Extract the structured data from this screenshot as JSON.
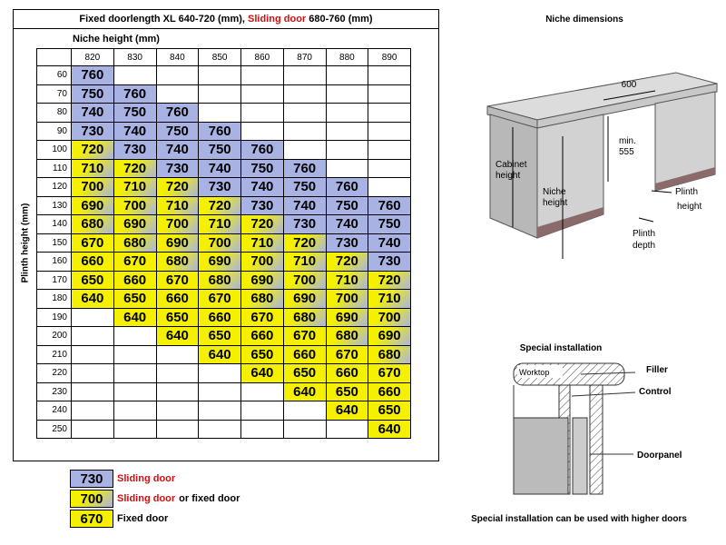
{
  "header": {
    "title_fixed": "Fixed doorlength XL 640-720 (mm),",
    "title_sliding": "Sliding door",
    "title_rest": "680-760 (mm)"
  },
  "table": {
    "x_label": "Niche height (mm)",
    "y_label": "Plinth height (mm)",
    "columns": [
      820,
      830,
      840,
      850,
      860,
      870,
      880,
      890
    ],
    "rows": [
      {
        "label": 60,
        "values": [
          760,
          null,
          null,
          null,
          null,
          null,
          null,
          null
        ],
        "colors": [
          "#a9b3e3",
          null,
          null,
          null,
          null,
          null,
          null,
          null
        ]
      },
      {
        "label": 70,
        "values": [
          750,
          760,
          null,
          null,
          null,
          null,
          null,
          null
        ],
        "colors": [
          "#a9b3e3",
          "#a9b3e3",
          null,
          null,
          null,
          null,
          null,
          null
        ]
      },
      {
        "label": 80,
        "values": [
          740,
          750,
          760,
          null,
          null,
          null,
          null,
          null
        ],
        "colors": [
          "#a9b3e3",
          "#a9b3e3",
          "#a9b3e3",
          null,
          null,
          null,
          null,
          null
        ]
      },
      {
        "label": 90,
        "values": [
          730,
          740,
          750,
          760,
          null,
          null,
          null,
          null
        ],
        "colors": [
          "#a9b3e3",
          "#a9b3e3",
          "#a9b3e3",
          "#a9b3e3",
          null,
          null,
          null,
          null
        ]
      },
      {
        "label": 100,
        "values": [
          720,
          730,
          740,
          750,
          760,
          null,
          null,
          null
        ],
        "colors": [
          "linear-gradient(135deg,#f4f000 35%,#a9b3e3)",
          "#a9b3e3",
          "#a9b3e3",
          "#a9b3e3",
          "#a9b3e3",
          null,
          null,
          null
        ]
      },
      {
        "label": 110,
        "values": [
          710,
          720,
          730,
          740,
          750,
          760,
          null,
          null
        ],
        "colors": [
          "linear-gradient(135deg,#f4f000 35%,#a9b3e3)",
          "linear-gradient(135deg,#f4f000 35%,#a9b3e3)",
          "#a9b3e3",
          "#a9b3e3",
          "#a9b3e3",
          "#a9b3e3",
          null,
          null
        ]
      },
      {
        "label": 120,
        "values": [
          700,
          710,
          720,
          730,
          740,
          750,
          760,
          null
        ],
        "colors": [
          "linear-gradient(135deg,#f4f000 35%,#a9b3e3)",
          "linear-gradient(135deg,#f4f000 35%,#a9b3e3)",
          "linear-gradient(135deg,#f4f000 35%,#a9b3e3)",
          "#a9b3e3",
          "#a9b3e3",
          "#a9b3e3",
          "#a9b3e3",
          null
        ]
      },
      {
        "label": 130,
        "values": [
          690,
          700,
          710,
          720,
          730,
          740,
          750,
          760
        ],
        "colors": [
          "linear-gradient(135deg,#f4f000 35%,#a9b3e3)",
          "linear-gradient(135deg,#f4f000 35%,#a9b3e3)",
          "linear-gradient(135deg,#f4f000 35%,#a9b3e3)",
          "linear-gradient(135deg,#f4f000 35%,#a9b3e3)",
          "#a9b3e3",
          "#a9b3e3",
          "#a9b3e3",
          "#a9b3e3"
        ]
      },
      {
        "label": 140,
        "values": [
          680,
          690,
          700,
          710,
          720,
          730,
          740,
          750
        ],
        "colors": [
          "linear-gradient(135deg,#f4f000 35%,#a9b3e3)",
          "linear-gradient(135deg,#f4f000 35%,#a9b3e3)",
          "linear-gradient(135deg,#f4f000 35%,#a9b3e3)",
          "linear-gradient(135deg,#f4f000 35%,#a9b3e3)",
          "linear-gradient(135deg,#f4f000 35%,#a9b3e3)",
          "#a9b3e3",
          "#a9b3e3",
          "#a9b3e3"
        ]
      },
      {
        "label": 150,
        "values": [
          670,
          680,
          690,
          700,
          710,
          720,
          730,
          740
        ],
        "colors": [
          "#f4f000",
          "linear-gradient(135deg,#f4f000 35%,#a9b3e3)",
          "linear-gradient(135deg,#f4f000 35%,#a9b3e3)",
          "linear-gradient(135deg,#f4f000 35%,#a9b3e3)",
          "linear-gradient(135deg,#f4f000 35%,#a9b3e3)",
          "linear-gradient(135deg,#f4f000 35%,#a9b3e3)",
          "#a9b3e3",
          "#a9b3e3"
        ]
      },
      {
        "label": 160,
        "values": [
          660,
          670,
          680,
          690,
          700,
          710,
          720,
          730
        ],
        "colors": [
          "#f4f000",
          "#f4f000",
          "linear-gradient(135deg,#f4f000 35%,#a9b3e3)",
          "linear-gradient(135deg,#f4f000 35%,#a9b3e3)",
          "linear-gradient(135deg,#f4f000 35%,#a9b3e3)",
          "linear-gradient(135deg,#f4f000 35%,#a9b3e3)",
          "linear-gradient(135deg,#f4f000 35%,#a9b3e3)",
          "#a9b3e3"
        ]
      },
      {
        "label": 170,
        "values": [
          650,
          660,
          670,
          680,
          690,
          700,
          710,
          720
        ],
        "colors": [
          "#f4f000",
          "#f4f000",
          "#f4f000",
          "linear-gradient(135deg,#f4f000 35%,#a9b3e3)",
          "linear-gradient(135deg,#f4f000 35%,#a9b3e3)",
          "linear-gradient(135deg,#f4f000 35%,#a9b3e3)",
          "linear-gradient(135deg,#f4f000 35%,#a9b3e3)",
          "linear-gradient(135deg,#f4f000 35%,#a9b3e3)"
        ]
      },
      {
        "label": 180,
        "values": [
          640,
          650,
          660,
          670,
          680,
          690,
          700,
          710
        ],
        "colors": [
          "#f4f000",
          "#f4f000",
          "#f4f000",
          "#f4f000",
          "linear-gradient(135deg,#f4f000 35%,#a9b3e3)",
          "linear-gradient(135deg,#f4f000 35%,#a9b3e3)",
          "linear-gradient(135deg,#f4f000 35%,#a9b3e3)",
          "linear-gradient(135deg,#f4f000 35%,#a9b3e3)"
        ]
      },
      {
        "label": 190,
        "values": [
          null,
          640,
          650,
          660,
          670,
          680,
          690,
          700
        ],
        "colors": [
          null,
          "#f4f000",
          "#f4f000",
          "#f4f000",
          "#f4f000",
          "linear-gradient(135deg,#f4f000 35%,#a9b3e3)",
          "linear-gradient(135deg,#f4f000 35%,#a9b3e3)",
          "linear-gradient(135deg,#f4f000 35%,#a9b3e3)"
        ]
      },
      {
        "label": 200,
        "values": [
          null,
          null,
          640,
          650,
          660,
          670,
          680,
          690
        ],
        "colors": [
          null,
          null,
          "#f4f000",
          "#f4f000",
          "#f4f000",
          "#f4f000",
          "linear-gradient(135deg,#f4f000 35%,#a9b3e3)",
          "linear-gradient(135deg,#f4f000 35%,#a9b3e3)"
        ]
      },
      {
        "label": 210,
        "values": [
          null,
          null,
          null,
          640,
          650,
          660,
          670,
          680
        ],
        "colors": [
          null,
          null,
          null,
          "#f4f000",
          "#f4f000",
          "#f4f000",
          "#f4f000",
          "linear-gradient(135deg,#f4f000 35%,#a9b3e3)"
        ]
      },
      {
        "label": 220,
        "values": [
          null,
          null,
          null,
          null,
          640,
          650,
          660,
          670
        ],
        "colors": [
          null,
          null,
          null,
          null,
          "#f4f000",
          "#f4f000",
          "#f4f000",
          "#f4f000"
        ]
      },
      {
        "label": 230,
        "values": [
          null,
          null,
          null,
          null,
          null,
          640,
          650,
          660
        ],
        "colors": [
          null,
          null,
          null,
          null,
          null,
          "#f4f000",
          "#f4f000",
          "#f4f000"
        ]
      },
      {
        "label": 240,
        "values": [
          null,
          null,
          null,
          null,
          null,
          null,
          640,
          650
        ],
        "colors": [
          null,
          null,
          null,
          null,
          null,
          null,
          "#f4f000",
          "#f4f000"
        ]
      },
      {
        "label": 250,
        "values": [
          null,
          null,
          null,
          null,
          null,
          null,
          null,
          640
        ],
        "colors": [
          null,
          null,
          null,
          null,
          null,
          null,
          null,
          "#f4f000"
        ]
      }
    ]
  },
  "legend": [
    {
      "value": 730,
      "color": "#a9b3e3",
      "label": "Sliding door"
    },
    {
      "value": 700,
      "color": "linear-gradient(135deg,#f4f000 35%,#a9b3e3)",
      "label": "Sliding door",
      "label_rest": "or fixed door"
    },
    {
      "value": 670,
      "color": "#f4f000",
      "label": "Fixed door"
    }
  ],
  "niche": {
    "title": "Niche dimensions",
    "width": "600",
    "min_1": "min.",
    "min_2": "555",
    "cabinet_1": "Cabinet",
    "cabinet_2": "height",
    "niche_1": "Niche",
    "niche_2": "height",
    "plinth_h_1": "Plinth",
    "plinth_h_2": "height",
    "plinth_d_1": "Plinth",
    "plinth_d_2": "depth"
  },
  "special": {
    "title": "Special installation",
    "worktop": "Worktop",
    "filler": "Filler",
    "control": "Control",
    "doorpanel": "Doorpanel",
    "note": "Special installation can be used with higher doors"
  }
}
